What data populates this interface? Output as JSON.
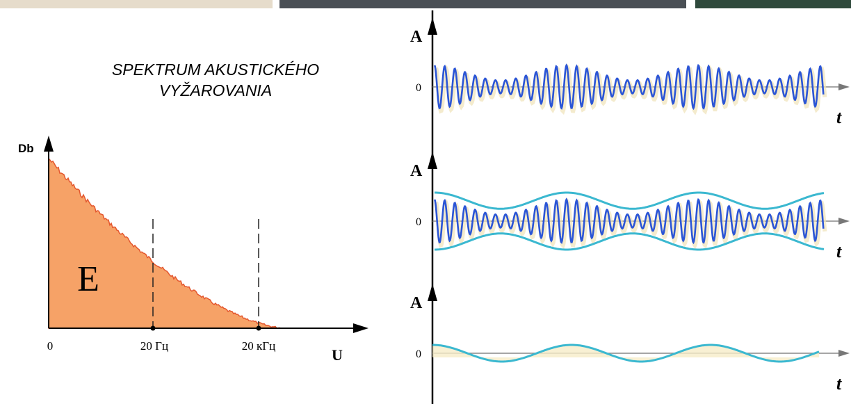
{
  "spectrum": {
    "title": [
      "SPEKTRUM AKUSTICKÉHO",
      "VYŽAROVANIA"
    ],
    "y_axis": "Db",
    "x_axis": "U",
    "area_label": "E",
    "x_labels": [
      "0",
      "20 Гц",
      "20 кГц"
    ]
  },
  "waveforms": [
    {
      "y_axis": "A",
      "zero": "0",
      "x_axis": "t"
    },
    {
      "y_axis": "A",
      "zero": "0",
      "x_axis": "t"
    },
    {
      "y_axis": "A",
      "zero": "0",
      "x_axis": "t"
    }
  ]
}
